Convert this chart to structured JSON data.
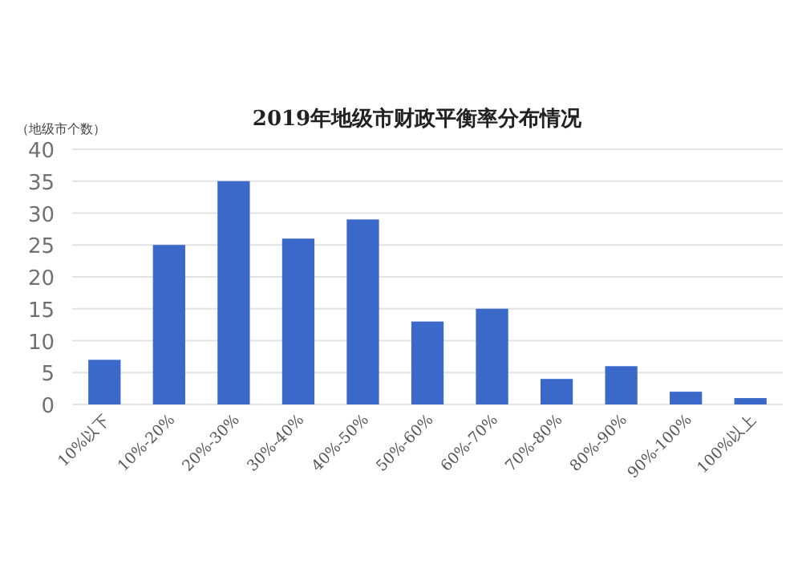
{
  "chart_data": {
    "type": "bar",
    "title": "2019年地级市财政平衡率分布情况",
    "ylabel": "（地级市个数）",
    "categories": [
      "10%以下",
      "10%-20%",
      "20%-30%",
      "30%-40%",
      "40%-50%",
      "50%-60%",
      "60%-70%",
      "70%-80%",
      "80%-90%",
      "90%-100%",
      "100%以上"
    ],
    "values": [
      7,
      25,
      35,
      26,
      29,
      13,
      15,
      4,
      6,
      2,
      1
    ],
    "color": "#3a69c9",
    "ylim": [
      0,
      40
    ],
    "yticks": [
      0,
      5,
      10,
      15,
      20,
      25,
      30,
      35,
      40
    ],
    "grid": "y"
  }
}
